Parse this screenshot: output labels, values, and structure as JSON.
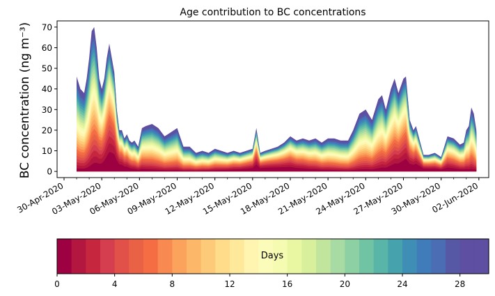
{
  "chart_data": {
    "type": "area",
    "title": "Age contribution to BC concentrations",
    "ylabel": "BC concentration (ng m⁻³)",
    "xlabel": "",
    "ylim": [
      -3,
      73
    ],
    "yticks": [
      0,
      10,
      20,
      30,
      40,
      50,
      60,
      70
    ],
    "x_start_day": 0,
    "x_end_day": 33,
    "x_ticks": [
      {
        "day": 0,
        "label": "30-Apr-2020"
      },
      {
        "day": 3,
        "label": "03-May-2020"
      },
      {
        "day": 6,
        "label": "06-May-2020"
      },
      {
        "day": 9,
        "label": "09-May-2020"
      },
      {
        "day": 12,
        "label": "12-May-2020"
      },
      {
        "day": 15,
        "label": "15-May-2020"
      },
      {
        "day": 18,
        "label": "18-May-2020"
      },
      {
        "day": 21,
        "label": "21-May-2020"
      },
      {
        "day": 24,
        "label": "24-May-2020"
      },
      {
        "day": 27,
        "label": "27-May-2020"
      },
      {
        "day": 30,
        "label": "30-May-2020"
      },
      {
        "day": 33,
        "label": "02-Jun-2020"
      }
    ],
    "series_note": "Stacked contributions by BC age (days 0-30); top envelope is total concentration",
    "total": {
      "days": [
        1.0,
        1.3,
        1.6,
        1.8,
        2.0,
        2.2,
        2.4,
        2.6,
        2.8,
        3.0,
        3.2,
        3.4,
        3.6,
        3.8,
        4.0,
        4.2,
        4.4,
        4.6,
        4.8,
        5.0,
        5.2,
        5.4,
        5.6,
        5.9,
        6.2,
        6.5,
        7.0,
        7.5,
        8.0,
        8.5,
        9.0,
        9.5,
        10.0,
        10.5,
        11.0,
        11.5,
        12.0,
        12.5,
        13.0,
        13.5,
        14.0,
        14.5,
        15.0,
        15.3,
        15.6,
        16.0,
        16.5,
        17.0,
        17.5,
        18.0,
        18.5,
        19.0,
        19.5,
        20.0,
        20.5,
        21.0,
        21.5,
        22.0,
        22.3,
        22.6,
        23.0,
        23.5,
        24.0,
        24.5,
        25.0,
        25.3,
        25.6,
        26.0,
        26.3,
        26.6,
        27.0,
        27.2,
        27.5,
        27.8,
        28.0,
        28.3,
        28.6,
        29.0,
        29.5,
        30.0,
        30.5,
        31.0,
        31.5,
        31.8,
        32.0,
        32.2,
        32.4,
        32.6,
        32.8
      ],
      "values": [
        46,
        40,
        38,
        45,
        55,
        68,
        70,
        60,
        45,
        40,
        45,
        55,
        62,
        55,
        48,
        30,
        20,
        20,
        16,
        18,
        15,
        14,
        15,
        12,
        21,
        22,
        23,
        21,
        17,
        19,
        21,
        12,
        12,
        9,
        10,
        9,
        11,
        10,
        9,
        10,
        9,
        10,
        11,
        21,
        9,
        10,
        11,
        12,
        14,
        17,
        15,
        16,
        15,
        16,
        14,
        16,
        16,
        15,
        15,
        15,
        20,
        28,
        30,
        25,
        35,
        37,
        30,
        40,
        45,
        38,
        45,
        46,
        25,
        20,
        22,
        15,
        8,
        8,
        9,
        7,
        17,
        16,
        13,
        14,
        20,
        22,
        31,
        28,
        20
      ]
    },
    "colorbar": {
      "label": "Days",
      "min": 0,
      "max": 30,
      "ticks": [
        0,
        4,
        8,
        12,
        16,
        20,
        24,
        28
      ],
      "levels": 30,
      "colors": [
        "#9e0142",
        "#b3173f",
        "#c6273f",
        "#d53e4f",
        "#e1514a",
        "#ea6246",
        "#f46d43",
        "#f88950",
        "#fba35c",
        "#fdb768",
        "#fdca79",
        "#fedc8a",
        "#fee99a",
        "#fff5b0",
        "#fcfcba",
        "#f5fbb0",
        "#e9f6a2",
        "#d8ef9c",
        "#c2e59e",
        "#a7dba3",
        "#8cd0a4",
        "#70c4a4",
        "#59b5a8",
        "#46a2ad",
        "#3e8eb6",
        "#3f7cb9",
        "#4a6db3",
        "#5658a6",
        "#5e4fa2",
        "#5e4fa2"
      ]
    }
  }
}
